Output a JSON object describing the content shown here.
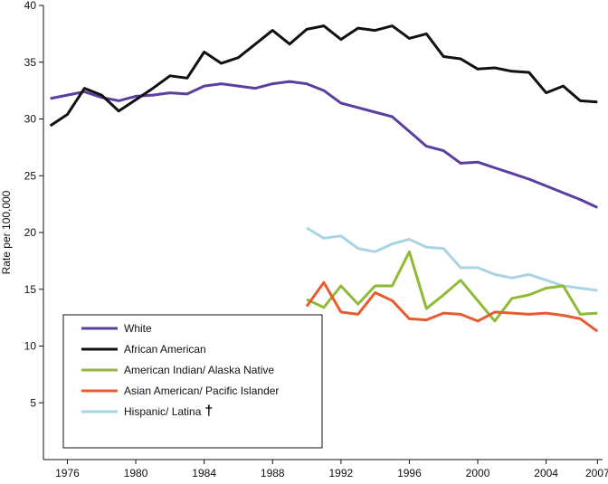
{
  "chart_data": {
    "type": "line",
    "title": "",
    "xlabel": "",
    "ylabel": "Rate per 100,000",
    "xlim": [
      1974.6,
      2007.3
    ],
    "ylim": [
      0,
      40
    ],
    "x_ticks": [
      1976,
      1980,
      1984,
      1988,
      1992,
      1996,
      2000,
      2004,
      2007
    ],
    "y_ticks": [
      5,
      10,
      15,
      20,
      25,
      30,
      35,
      40
    ],
    "grid": false,
    "legend_position": "bottom-left",
    "series": [
      {
        "name": "White",
        "color": "#5b3fa0",
        "x": [
          1975,
          1976,
          1977,
          1978,
          1979,
          1980,
          1981,
          1982,
          1983,
          1984,
          1985,
          1986,
          1987,
          1988,
          1989,
          1990,
          1991,
          1992,
          1993,
          1994,
          1995,
          1996,
          1997,
          1998,
          1999,
          2000,
          2001,
          2002,
          2003,
          2004,
          2005,
          2006,
          2007
        ],
        "values": [
          31.8,
          32.1,
          32.4,
          31.9,
          31.6,
          32.0,
          32.1,
          32.3,
          32.2,
          32.9,
          33.1,
          32.9,
          32.7,
          33.1,
          33.3,
          33.1,
          32.5,
          31.4,
          31.0,
          30.6,
          30.2,
          28.9,
          27.6,
          27.2,
          26.1,
          26.2,
          25.7,
          25.2,
          24.7,
          24.1,
          23.5,
          22.9,
          22.2
        ]
      },
      {
        "name": "African American",
        "color": "#111111",
        "x": [
          1975,
          1976,
          1977,
          1978,
          1979,
          1980,
          1981,
          1982,
          1983,
          1984,
          1985,
          1986,
          1987,
          1988,
          1989,
          1990,
          1991,
          1992,
          1993,
          1994,
          1995,
          1996,
          1997,
          1998,
          1999,
          2000,
          2001,
          2002,
          2003,
          2004,
          2005,
          2006,
          2007
        ],
        "values": [
          29.4,
          30.4,
          32.7,
          32.1,
          30.7,
          31.7,
          32.7,
          33.8,
          33.6,
          35.9,
          34.9,
          35.4,
          36.6,
          37.8,
          36.6,
          37.9,
          38.2,
          37.0,
          38.0,
          37.8,
          38.2,
          37.1,
          37.5,
          35.5,
          35.3,
          34.4,
          34.5,
          34.2,
          34.1,
          32.3,
          32.9,
          31.6,
          31.5
        ]
      },
      {
        "name": "American Indian/ Alaska Native",
        "color": "#8dbb35",
        "x": [
          1990,
          1991,
          1992,
          1993,
          1994,
          1995,
          1996,
          1997,
          1998,
          1999,
          2000,
          2001,
          2002,
          2003,
          2004,
          2005,
          2006,
          2007
        ],
        "values": [
          14.1,
          13.4,
          15.3,
          13.7,
          15.3,
          15.3,
          18.3,
          13.3,
          14.5,
          15.8,
          14.0,
          12.2,
          14.2,
          14.5,
          15.1,
          15.3,
          12.8,
          12.9
        ]
      },
      {
        "name": "Asian American/ Pacific Islander",
        "color": "#e85a2f",
        "x": [
          1990,
          1991,
          1992,
          1993,
          1994,
          1995,
          1996,
          1997,
          1998,
          1999,
          2000,
          2001,
          2002,
          2003,
          2004,
          2005,
          2006,
          2007
        ],
        "values": [
          13.5,
          15.6,
          13.0,
          12.8,
          14.7,
          14.0,
          12.4,
          12.3,
          12.9,
          12.8,
          12.2,
          13.0,
          12.9,
          12.8,
          12.9,
          12.7,
          12.4,
          11.3
        ]
      },
      {
        "name": "Hispanic/ Latina",
        "color": "#a9d4e3",
        "x": [
          1990,
          1991,
          1992,
          1993,
          1994,
          1995,
          1996,
          1997,
          1998,
          1999,
          2000,
          2001,
          2002,
          2003,
          2004,
          2005,
          2006,
          2007
        ],
        "values": [
          20.4,
          19.5,
          19.7,
          18.6,
          18.3,
          19.0,
          19.4,
          18.7,
          18.6,
          16.9,
          16.9,
          16.3,
          16.0,
          16.3,
          15.8,
          15.3,
          15.1,
          14.9
        ]
      }
    ],
    "legend": [
      {
        "label": "White",
        "suffix": ""
      },
      {
        "label": "African American",
        "suffix": ""
      },
      {
        "label": "American Indian/ Alaska Native",
        "suffix": ""
      },
      {
        "label": "Asian American/ Pacific Islander",
        "suffix": ""
      },
      {
        "label": "Hispanic/ Latina",
        "suffix": "†"
      }
    ]
  }
}
